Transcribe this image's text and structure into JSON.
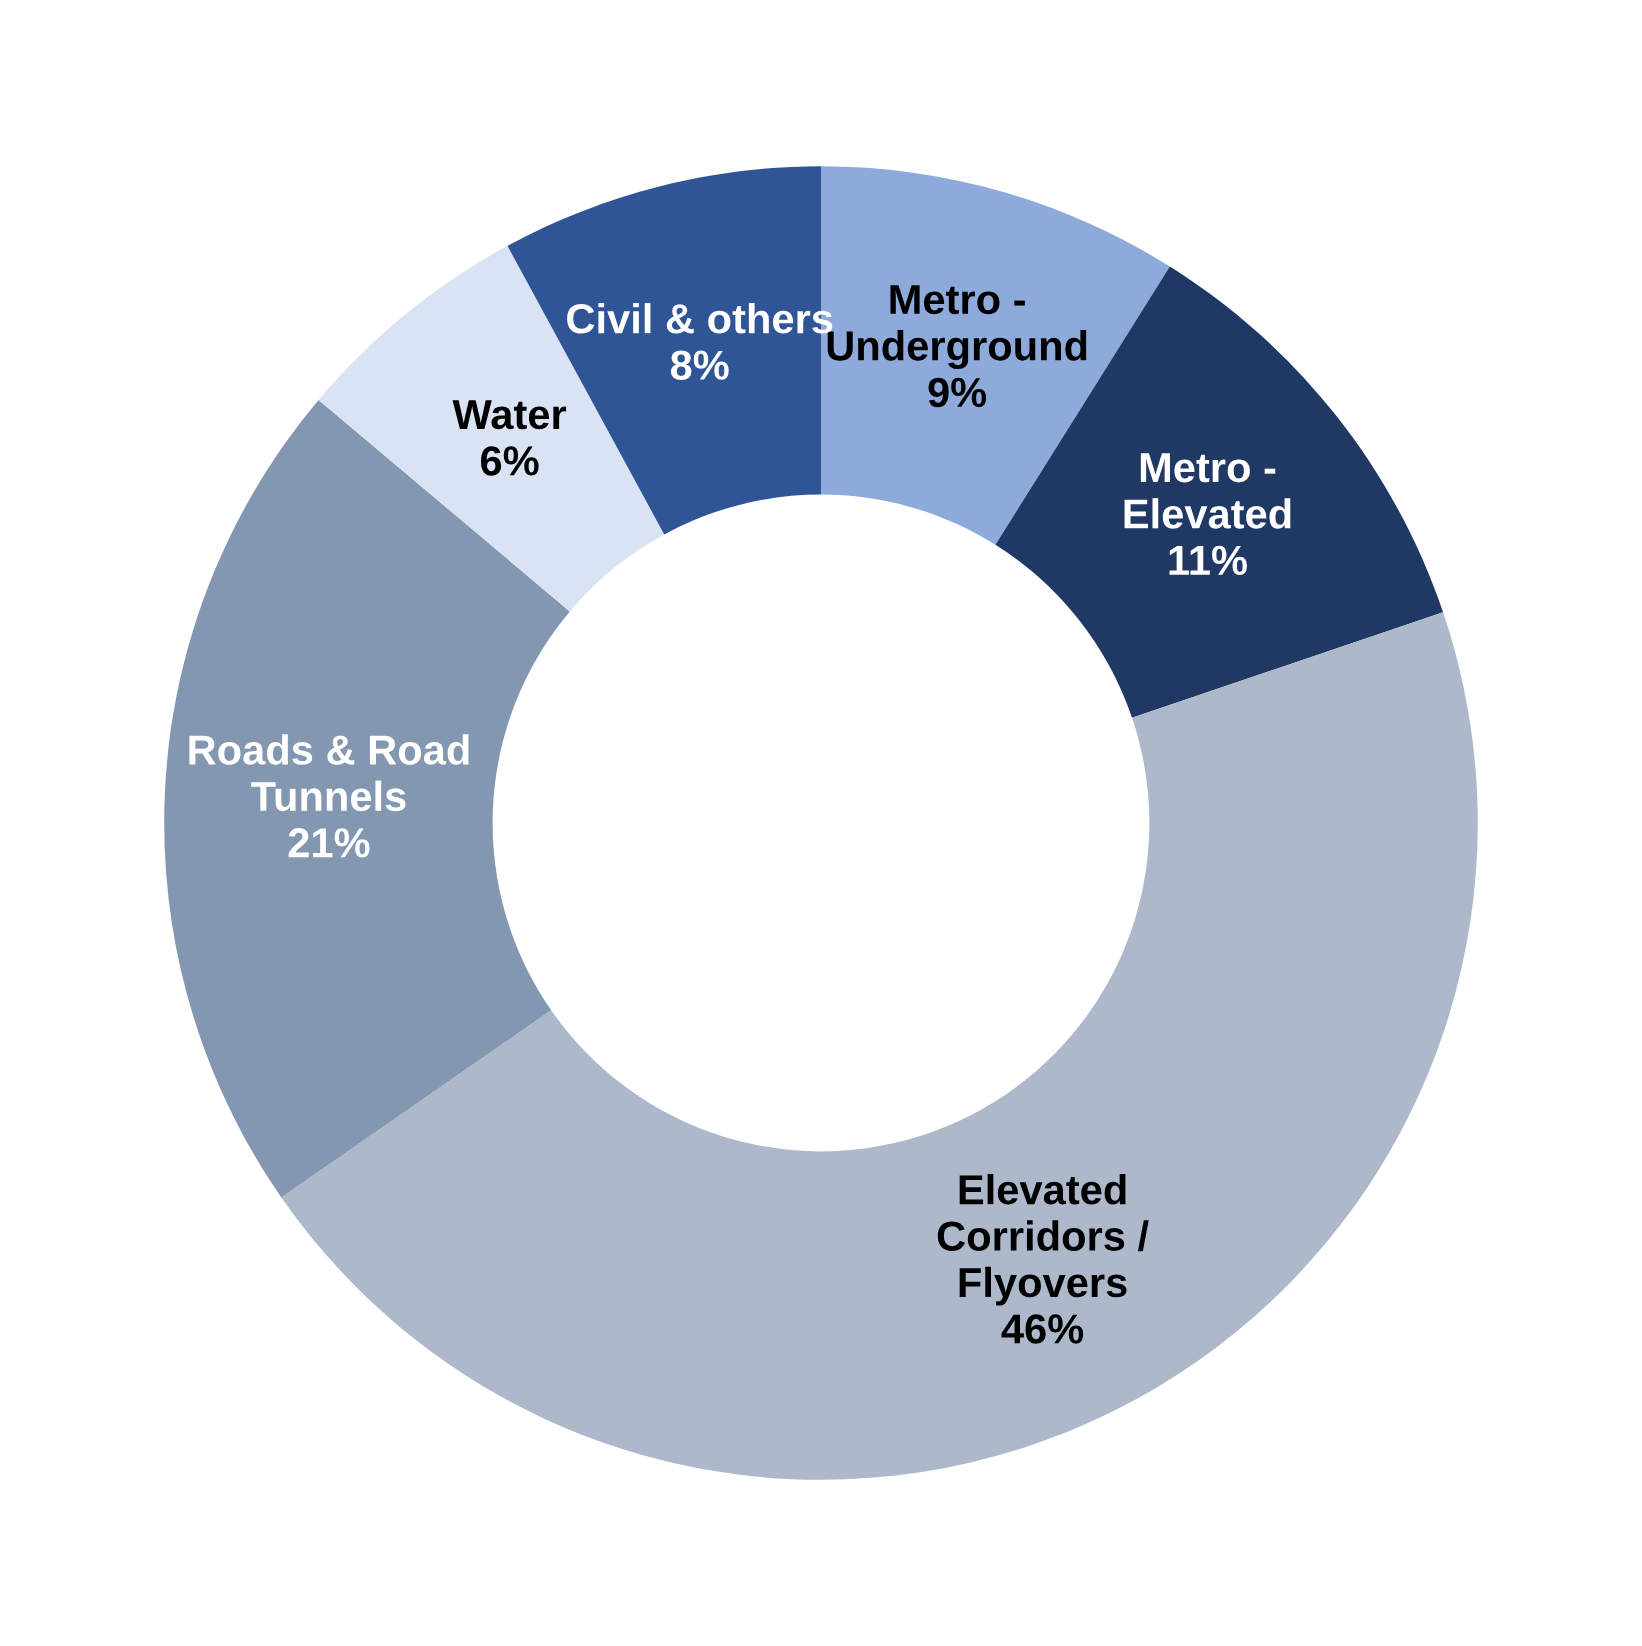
{
  "chart_data": {
    "type": "donut",
    "categories": [
      "Metro -\nUnderground",
      "Metro -\nElevated",
      "Elevated\nCorridors /\nFlyovers",
      "Roads & Road\nTunnels",
      "Water",
      "Civil & others"
    ],
    "values": [
      9,
      11,
      46,
      21,
      6,
      8
    ],
    "value_labels": [
      "9%",
      "11%",
      "46%",
      "21%",
      "6%",
      "8%"
    ],
    "colors": [
      "#8eaadb",
      "#203864",
      "#adb9ca",
      "#8497b0",
      "#dae3f3",
      "#2f5597"
    ],
    "legend": false
  }
}
